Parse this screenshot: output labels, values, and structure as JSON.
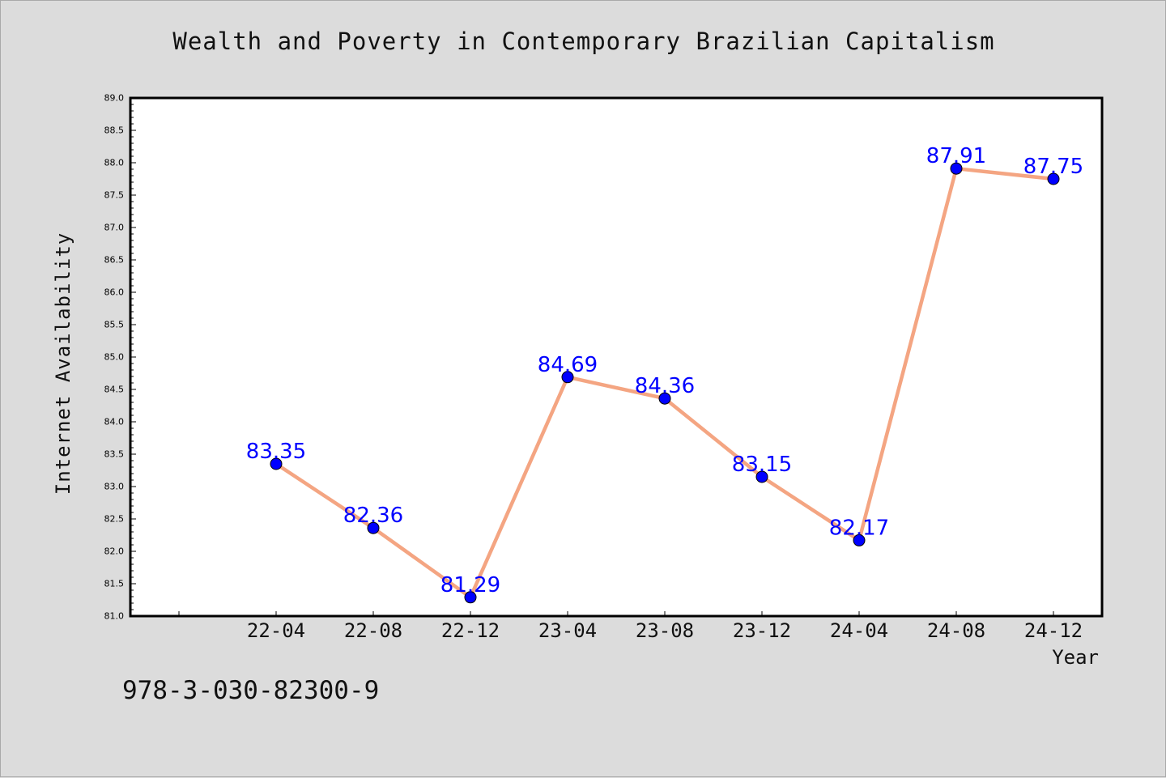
{
  "chart_data": {
    "type": "line",
    "title": "Wealth and Poverty in Contemporary Brazilian Capitalism",
    "xlabel": "Year",
    "ylabel": "Internet Availability",
    "categories": [
      "22-04",
      "22-08",
      "22-12",
      "23-04",
      "23-08",
      "23-12",
      "24-04",
      "24-08",
      "24-12"
    ],
    "series": [
      {
        "values": [
          83.35,
          82.36,
          81.29,
          84.69,
          84.36,
          83.15,
          82.17,
          87.91,
          87.75
        ]
      }
    ],
    "data_labels": [
      "83.35",
      "82.36",
      "81.29",
      "84.69",
      "84.36",
      "83.15",
      "82.17",
      "87.91",
      "87.75"
    ],
    "ylim": [
      81.0,
      89.0
    ],
    "y_ticks": [
      "81.0",
      "81.5",
      "82.0",
      "82.5",
      "83.0",
      "83.5",
      "84.0",
      "84.5",
      "85.0",
      "85.5",
      "86.0",
      "86.5",
      "87.0",
      "87.5",
      "88.0",
      "88.5",
      "89.0"
    ],
    "grid": false,
    "line_color": "#f4a582",
    "marker_color": "#0000ff",
    "label_color": "#0000ff"
  },
  "footnote": "978-3-030-82300-9"
}
